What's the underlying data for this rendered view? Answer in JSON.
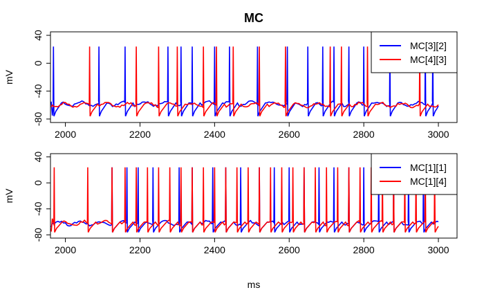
{
  "chart_data": [
    {
      "type": "line",
      "title": "MC",
      "ylabel": "mV",
      "xlabel": "",
      "xlim": [
        1960,
        3050
      ],
      "ylim": [
        -85,
        45
      ],
      "xticks": [
        2000,
        2200,
        2400,
        2600,
        2800,
        3000
      ],
      "yticks": [
        -80,
        -40,
        0,
        40
      ],
      "ytick_labels": [
        "-80",
        "-40",
        "0",
        "40"
      ],
      "xtick_labels": [
        "2000",
        "2200",
        "2400",
        "2600",
        "2800",
        "3000"
      ],
      "legend_position": "top-right",
      "series": [
        {
          "name": "MC[3][2]",
          "color": "#0000ff",
          "baseline": -58,
          "start_values": [
            -55,
            -75
          ],
          "spikes": [
            1968,
            2090,
            2160,
            2275,
            2310,
            2340,
            2400,
            2440,
            2515,
            2595,
            2650,
            2690,
            2720,
            2760,
            2800,
            2870,
            2965,
            2985
          ]
        },
        {
          "name": "MC[4][3]",
          "color": "#ff0000",
          "baseline": -60,
          "start_values": [
            -63,
            -60
          ],
          "spikes": [
            2065,
            2190,
            2250,
            2300,
            2370,
            2405,
            2450,
            2520,
            2590,
            2710,
            2740,
            2810,
            2950
          ]
        }
      ]
    },
    {
      "type": "line",
      "title": "",
      "ylabel": "mV",
      "xlabel": "ms",
      "xlim": [
        1960,
        3050
      ],
      "ylim": [
        -85,
        45
      ],
      "xticks": [
        2000,
        2200,
        2400,
        2600,
        2800,
        3000
      ],
      "yticks": [
        -80,
        -40,
        0,
        40
      ],
      "ytick_labels": [
        "-80",
        "-40",
        "0",
        "40"
      ],
      "xtick_labels": [
        "2000",
        "2200",
        "2400",
        "2600",
        "2800",
        "3000"
      ],
      "legend_position": "top-right",
      "series": [
        {
          "name": "MC[1][1]",
          "color": "#0000ff",
          "baseline": -62,
          "start_values": [
            -68,
            -62
          ],
          "spikes": [
            2125,
            2165,
            2195,
            2235,
            2305,
            2340,
            2395,
            2430,
            2470,
            2520,
            2560,
            2600,
            2640,
            2680,
            2720,
            2760,
            2800,
            2840,
            2880,
            2920,
            2960
          ]
        },
        {
          "name": "MC[1][4]",
          "color": "#ff0000",
          "baseline": -62,
          "start_values": [
            -75,
            -55
          ],
          "spikes": [
            1970,
            2060,
            2125,
            2160,
            2190,
            2220,
            2250,
            2280,
            2310,
            2340,
            2370,
            2400,
            2430,
            2460,
            2490,
            2520,
            2550,
            2580,
            2610,
            2640,
            2670,
            2700,
            2730,
            2760,
            2790,
            2820,
            2850,
            2880,
            2910,
            2940,
            2965,
            2990
          ]
        }
      ]
    }
  ]
}
